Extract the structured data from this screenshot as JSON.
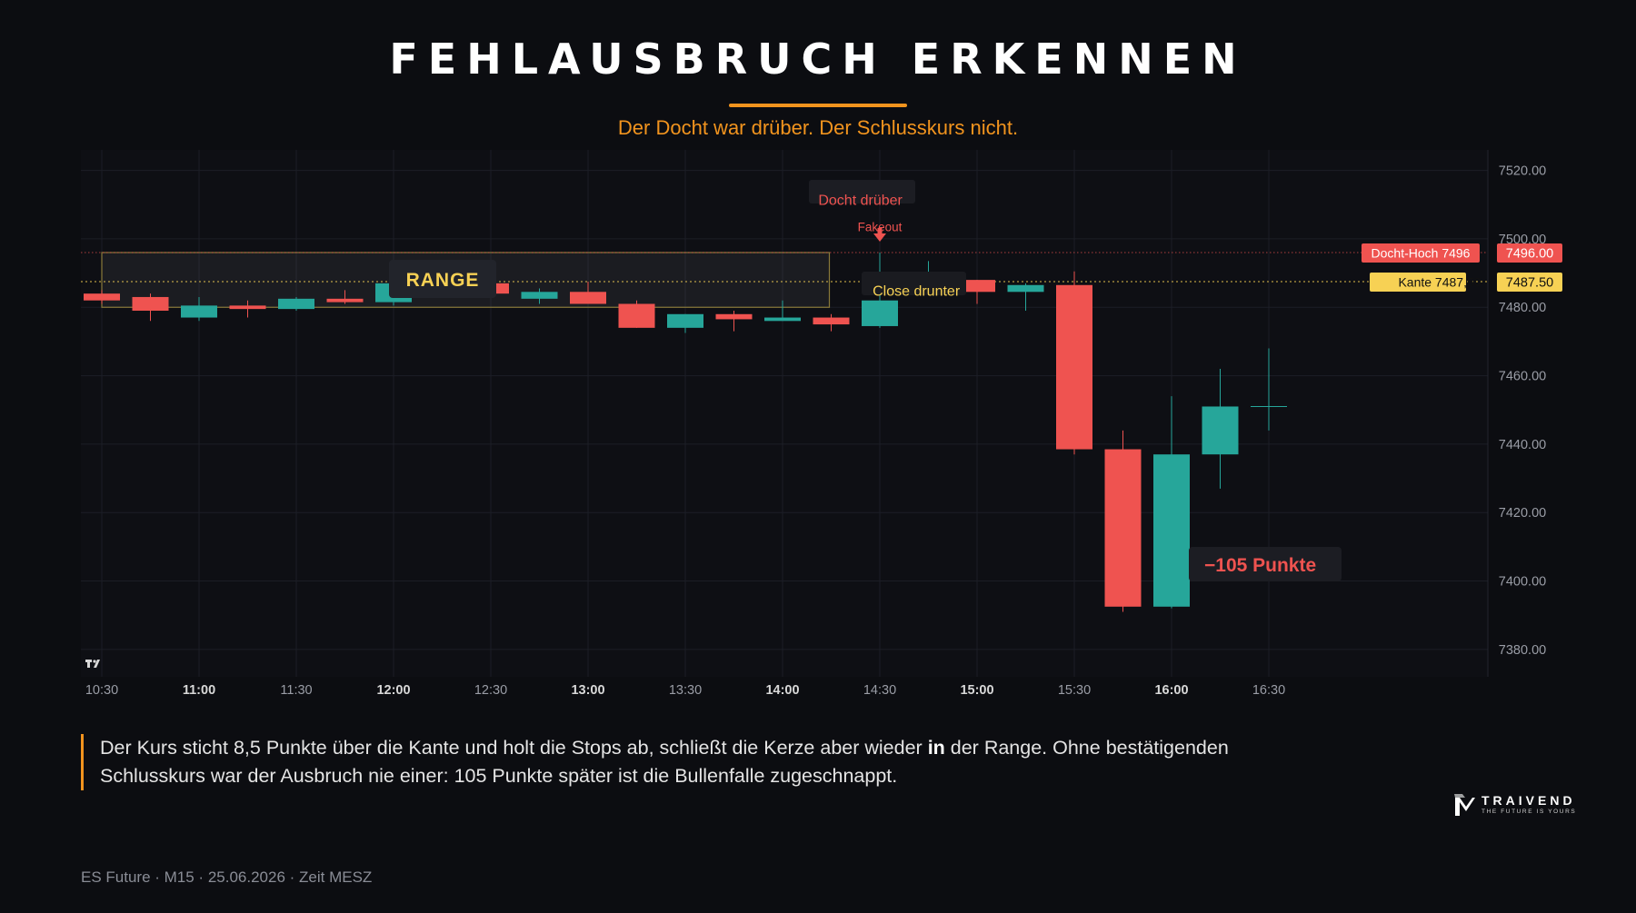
{
  "header": {
    "title": "FEHLAUSBRUCH ERKENNEN",
    "subtitle": "Der Docht war drüber. Der Schlusskurs nicht."
  },
  "chart_data": {
    "type": "candlestick",
    "yaxis": {
      "ylim": [
        7372,
        7526
      ],
      "ticks": [
        "7520.00",
        "7500.00",
        "7480.00",
        "7460.00",
        "7440.00",
        "7420.00",
        "7400.00",
        "7380.00"
      ]
    },
    "xaxis": {
      "ticks": [
        {
          "t": 0,
          "label": "10:30",
          "bold": false
        },
        {
          "t": 2,
          "label": "11:00",
          "bold": true
        },
        {
          "t": 4,
          "label": "11:30",
          "bold": false
        },
        {
          "t": 6,
          "label": "12:00",
          "bold": true
        },
        {
          "t": 8,
          "label": "12:30",
          "bold": false
        },
        {
          "t": 10,
          "label": "13:00",
          "bold": true
        },
        {
          "t": 12,
          "label": "13:30",
          "bold": false
        },
        {
          "t": 14,
          "label": "14:00",
          "bold": true
        },
        {
          "t": 16,
          "label": "14:30",
          "bold": false
        },
        {
          "t": 18,
          "label": "15:00",
          "bold": true
        },
        {
          "t": 20,
          "label": "15:30",
          "bold": false
        },
        {
          "t": 22,
          "label": "16:00",
          "bold": true
        },
        {
          "t": 24,
          "label": "16:30",
          "bold": false
        }
      ]
    },
    "candles": [
      {
        "o": 7484.0,
        "h": 7485.0,
        "l": 7481.0,
        "c": 7482.0
      },
      {
        "o": 7483.0,
        "h": 7484.0,
        "l": 7476.0,
        "c": 7479.0
      },
      {
        "o": 7477.0,
        "h": 7483.0,
        "l": 7476.0,
        "c": 7480.5
      },
      {
        "o": 7480.5,
        "h": 7482.0,
        "l": 7477.0,
        "c": 7479.5
      },
      {
        "o": 7479.5,
        "h": 7483.0,
        "l": 7479.0,
        "c": 7482.5
      },
      {
        "o": 7482.5,
        "h": 7485.0,
        "l": 7481.0,
        "c": 7481.5
      },
      {
        "o": 7481.5,
        "h": 7487.0,
        "l": 7480.5,
        "c": 7487.0
      },
      {
        "o": 7487.0,
        "h": 7488.5,
        "l": 7483.0,
        "c": 7484.0
      },
      {
        "o": 7487.0,
        "h": 7488.0,
        "l": 7483.5,
        "c": 7484.0
      },
      {
        "o": 7482.5,
        "h": 7485.5,
        "l": 7481.0,
        "c": 7484.5
      },
      {
        "o": 7484.5,
        "h": 7487.5,
        "l": 7481.0,
        "c": 7481.0
      },
      {
        "o": 7481.0,
        "h": 7482.0,
        "l": 7474.0,
        "c": 7474.0
      },
      {
        "o": 7474.0,
        "h": 7478.0,
        "l": 7472.5,
        "c": 7478.0
      },
      {
        "o": 7478.0,
        "h": 7479.0,
        "l": 7473.0,
        "c": 7476.5
      },
      {
        "o": 7476.0,
        "h": 7482.0,
        "l": 7476.0,
        "c": 7477.0
      },
      {
        "o": 7477.0,
        "h": 7478.0,
        "l": 7473.0,
        "c": 7475.0
      },
      {
        "o": 7474.5,
        "h": 7496.0,
        "l": 7474.0,
        "c": 7482.0
      },
      {
        "o": 7485.0,
        "h": 7493.5,
        "l": 7484.0,
        "c": 7485.0
      },
      {
        "o": 7488.0,
        "h": 7488.0,
        "l": 7481.0,
        "c": 7484.5
      },
      {
        "o": 7484.5,
        "h": 7487.0,
        "l": 7479.0,
        "c": 7486.5
      },
      {
        "o": 7486.5,
        "h": 7490.5,
        "l": 7437.0,
        "c": 7438.5
      },
      {
        "o": 7438.5,
        "h": 7444.0,
        "l": 7391.0,
        "c": 7392.5
      },
      {
        "o": 7392.5,
        "h": 7454.0,
        "l": 7392.0,
        "c": 7437.0
      },
      {
        "o": 7437.0,
        "h": 7462.0,
        "l": 7427.0,
        "c": 7451.0
      },
      {
        "o": 7451.0,
        "h": 7468.0,
        "l": 7444.0,
        "c": 7451.0
      }
    ],
    "levels": [
      {
        "value": 7496.0,
        "label": "Docht-Hoch 7496",
        "price_label": "7496.00",
        "color": "#ef5350"
      },
      {
        "value": 7487.5,
        "label": "Kante 7487,50",
        "price_label": "7487.50",
        "color": "#f7d154"
      }
    ],
    "range_box": {
      "t_start": 0,
      "t_end": 15,
      "y_top": 7496.0,
      "y_bottom": 7480.0,
      "label": "RANGE"
    },
    "annotations": [
      {
        "text": "Docht drüber",
        "t": 15.6,
        "y": 7511.5,
        "color": "#ef5350"
      },
      {
        "text": "Fakeout",
        "t": 16,
        "y": 7503.5,
        "color": "#ef5350"
      },
      {
        "text": "Close drunter",
        "t": 16.75,
        "y": 7485.0,
        "color": "#f7d154"
      },
      {
        "text": "−105 Punkte",
        "t": 24.15,
        "y": 7402.5,
        "color": "#ef5350"
      }
    ],
    "colors": {
      "up": "#26a69a",
      "down": "#ef5350",
      "grid": "#1c1e26",
      "axis_text": "#9a9da6"
    }
  },
  "description": {
    "part1": "Der Kurs sticht 8,5 Punkte über die Kante und holt die Stops ab, schließt die Kerze aber wieder ",
    "bold": "in",
    "part2": " der Range. Ohne bestätigenden Schlusskurs war der Ausbruch nie einer: 105 Punkte später ist die Bullenfalle zugeschnappt."
  },
  "footer": {
    "text": "ES Future · M15 · 25.06.2026 · Zeit MESZ"
  },
  "brand": {
    "name": "TRAIVEND",
    "tagline": "THE FUTURE IS YOURS",
    "tv_logo_icon": "tradingview-logo-icon",
    "brand_logo_icon": "traivend-logo-icon"
  }
}
